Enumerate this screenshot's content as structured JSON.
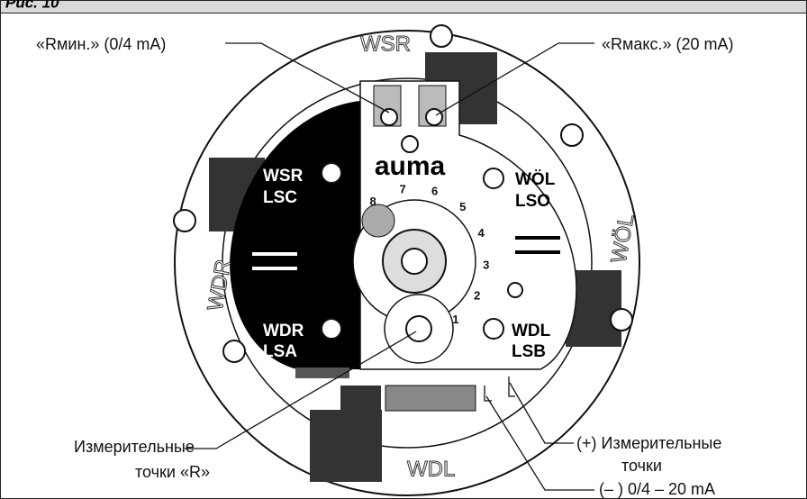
{
  "header": {
    "title": "Рис. 10"
  },
  "callouts": [
    {
      "lines": [
        "«Rмин.» (0/4 mA)"
      ]
    },
    {
      "lines": [
        "«Rмакс.» (20 mA)"
      ]
    },
    {
      "lines": [
        "Измерительные",
        "точки «R»"
      ]
    },
    {
      "lines": [
        "(+)  Измерительные",
        "точки"
      ]
    },
    {
      "lines": [
        "(– ) 0/4 – 20 mA"
      ]
    }
  ],
  "ring_labels": [
    "WSR",
    "WÖL",
    "WDR",
    "WDL"
  ],
  "switch_labels": [
    {
      "line1": "WSR",
      "line2": "LSC"
    },
    {
      "line1": "WÖL",
      "line2": "LSO"
    },
    {
      "line1": "WDR",
      "line2": "LSA"
    },
    {
      "line1": "WDL",
      "line2": "LSB"
    }
  ],
  "logo": "auma",
  "dial_numbers": [
    "1",
    "2",
    "3",
    "4",
    "5",
    "6",
    "7",
    "8"
  ]
}
